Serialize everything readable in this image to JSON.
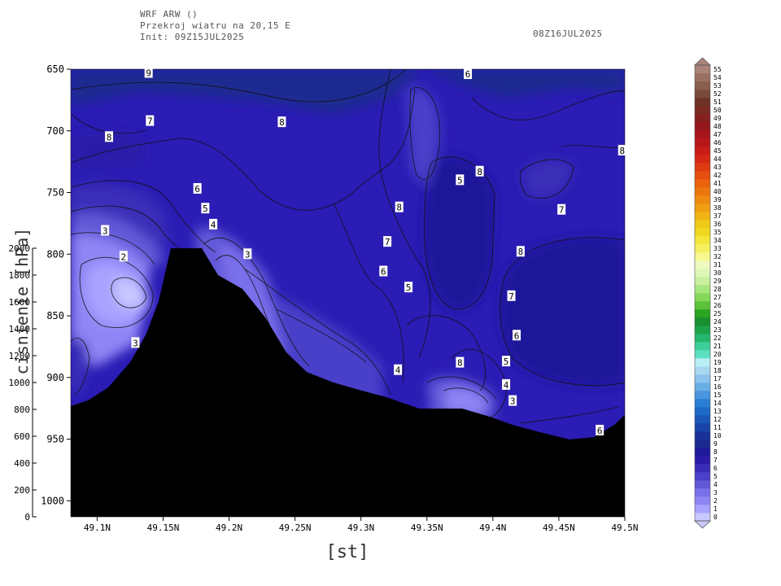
{
  "header": {
    "title": "WRF ARW ()",
    "subtitle": "Przekroj wiatru na 20,15 E",
    "init": "Init: 09Z15JUL2025",
    "valid": "08Z16JUL2025"
  },
  "chart_data": {
    "type": "heatmap",
    "xlabel": "[st]",
    "ylabel_right": "cisnienie [hPa]",
    "ylabel_left_ticks": [
      "0",
      "200",
      "400",
      "600",
      "800",
      "1000",
      "1200",
      "1400",
      "1600",
      "1800",
      "2000"
    ],
    "x_ticks": [
      "49.1N",
      "49.15N",
      "49.2N",
      "49.25N",
      "49.3N",
      "49.35N",
      "49.4N",
      "49.45N",
      "49.5N"
    ],
    "x_values": [
      49.1,
      49.15,
      49.2,
      49.25,
      49.3,
      49.35,
      49.4,
      49.45,
      49.5
    ],
    "xlim": [
      49.08,
      49.5
    ],
    "y_ticks": [
      "650",
      "700",
      "750",
      "800",
      "850",
      "900",
      "950",
      "1000"
    ],
    "y_values": [
      650,
      700,
      750,
      800,
      850,
      900,
      950,
      1000
    ],
    "ylim": [
      1013,
      650
    ],
    "height_axis_lim": [
      0,
      2000
    ],
    "colorbar": {
      "labels": [
        "0",
        "1",
        "2",
        "3",
        "4",
        "5",
        "6",
        "7",
        "8",
        "9",
        "10",
        "11",
        "12",
        "13",
        "14",
        "15",
        "16",
        "17",
        "18",
        "19",
        "20",
        "21",
        "22",
        "23",
        "24",
        "25",
        "26",
        "27",
        "28",
        "29",
        "30",
        "31",
        "32",
        "33",
        "34",
        "35",
        "36",
        "37",
        "38",
        "39",
        "40",
        "41",
        "42",
        "43",
        "44",
        "45",
        "46",
        "47",
        "48",
        "49",
        "50",
        "51",
        "52",
        "53",
        "54",
        "55"
      ],
      "colors": [
        "#c8c8ff",
        "#a9a3ff",
        "#8f85f5",
        "#7a70eb",
        "#6258d8",
        "#4a40c9",
        "#3a2db8",
        "#2c1aa9",
        "#1f1899",
        "#1a2a90",
        "#18329a",
        "#1945a8",
        "#1a58b8",
        "#1c6bc8",
        "#2a7fd4",
        "#4a95de",
        "#6aaee6",
        "#8cc3ec",
        "#a8d8f0",
        "#b8eef5",
        "#5de0c0",
        "#3ccf9a",
        "#25b66e",
        "#1ea24a",
        "#1a8f2f",
        "#2aa51f",
        "#5cc23a",
        "#86d85a",
        "#a8e67e",
        "#c8f09f",
        "#ddf7b5",
        "#eefac0",
        "#f8f890",
        "#f5f060",
        "#f2e63a",
        "#f0d820",
        "#f0c818",
        "#f0b415",
        "#ef9e12",
        "#ee8a10",
        "#ec760e",
        "#ea620e",
        "#e54e10",
        "#de3a12",
        "#d42814",
        "#c81c18",
        "#b8161a",
        "#a8141c",
        "#96161e",
        "#862020",
        "#7a2a22",
        "#6e3224",
        "#7a4a3a",
        "#8a5e4c",
        "#9a7060",
        "#aa8478"
      ]
    },
    "contour_labels": [
      {
        "v": "9",
        "x": 49.139,
        "p": 653
      },
      {
        "v": "6",
        "x": 49.381,
        "p": 654
      },
      {
        "v": "8",
        "x": 49.109,
        "p": 705
      },
      {
        "v": "7",
        "x": 49.14,
        "p": 692
      },
      {
        "v": "8",
        "x": 49.24,
        "p": 693
      },
      {
        "v": "8",
        "x": 49.498,
        "p": 716
      },
      {
        "v": "8",
        "x": 49.39,
        "p": 733
      },
      {
        "v": "5",
        "x": 49.375,
        "p": 740
      },
      {
        "v": "6",
        "x": 49.176,
        "p": 747
      },
      {
        "v": "5",
        "x": 49.182,
        "p": 763
      },
      {
        "v": "8",
        "x": 49.329,
        "p": 762
      },
      {
        "v": "7",
        "x": 49.452,
        "p": 764
      },
      {
        "v": "4",
        "x": 49.188,
        "p": 776
      },
      {
        "v": "3",
        "x": 49.106,
        "p": 781
      },
      {
        "v": "7",
        "x": 49.32,
        "p": 790
      },
      {
        "v": "8",
        "x": 49.421,
        "p": 798
      },
      {
        "v": "3",
        "x": 49.214,
        "p": 800
      },
      {
        "v": "2",
        "x": 49.12,
        "p": 802
      },
      {
        "v": "6",
        "x": 49.317,
        "p": 814
      },
      {
        "v": "5",
        "x": 49.336,
        "p": 827
      },
      {
        "v": "7",
        "x": 49.414,
        "p": 834
      },
      {
        "v": "6",
        "x": 49.418,
        "p": 866
      },
      {
        "v": "3",
        "x": 49.129,
        "p": 872
      },
      {
        "v": "8",
        "x": 49.375,
        "p": 888
      },
      {
        "v": "5",
        "x": 49.41,
        "p": 887
      },
      {
        "v": "4",
        "x": 49.328,
        "p": 894
      },
      {
        "v": "4",
        "x": 49.41,
        "p": 906
      },
      {
        "v": "3",
        "x": 49.415,
        "p": 919
      },
      {
        "v": "6",
        "x": 49.481,
        "p": 943
      }
    ]
  }
}
